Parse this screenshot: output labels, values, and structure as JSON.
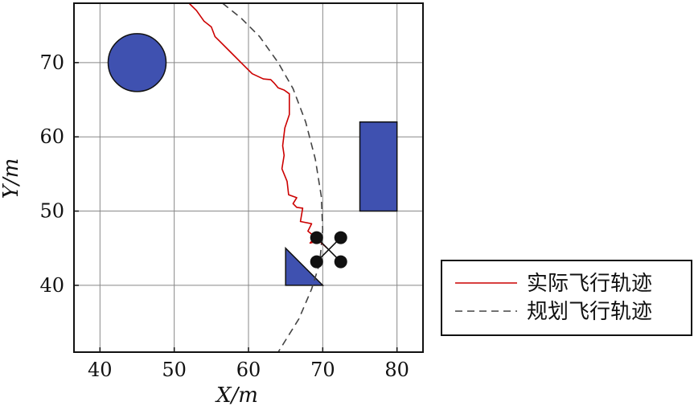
{
  "chart_data": {
    "type": "line",
    "title": "",
    "xlabel": "X/m",
    "ylabel": "Y/m",
    "xlim": [
      36.5,
      83.5
    ],
    "ylim": [
      31,
      78
    ],
    "xticks": [
      40,
      50,
      60,
      70,
      80
    ],
    "yticks": [
      40,
      50,
      60,
      70
    ],
    "xtick_labels": [
      "40",
      "50",
      "60",
      "70",
      "80"
    ],
    "ytick_labels": [
      "40",
      "50",
      "60",
      "70"
    ],
    "grid": true,
    "legend_position": "outside-right",
    "series": [
      {
        "name": "实际飞行轨迹",
        "color": "#cc0000",
        "style": "solid",
        "points": [
          [
            52.0,
            78.0
          ],
          [
            53.0,
            77.0
          ],
          [
            54.0,
            75.6
          ],
          [
            55.0,
            74.8
          ],
          [
            55.5,
            73.5
          ],
          [
            56.0,
            73.0
          ],
          [
            57.5,
            71.5
          ],
          [
            59.0,
            70.0
          ],
          [
            60.5,
            68.5
          ],
          [
            62.0,
            67.8
          ],
          [
            63.0,
            67.7
          ],
          [
            63.5,
            67.2
          ],
          [
            64.0,
            66.6
          ],
          [
            64.8,
            66.3
          ],
          [
            65.5,
            65.8
          ],
          [
            65.5,
            63.0
          ],
          [
            64.9,
            61.2
          ],
          [
            64.6,
            58.8
          ],
          [
            64.8,
            57.5
          ],
          [
            64.5,
            55.7
          ],
          [
            65.2,
            54.0
          ],
          [
            65.4,
            52.2
          ],
          [
            66.5,
            51.8
          ],
          [
            66.0,
            51.0
          ],
          [
            66.5,
            50.5
          ],
          [
            67.3,
            50.4
          ],
          [
            67.0,
            48.6
          ],
          [
            68.5,
            48.3
          ],
          [
            68.0,
            47.3
          ],
          [
            69.0,
            46.5
          ],
          [
            68.3,
            45.7
          ],
          [
            69.5,
            46.0
          ],
          [
            70.6,
            45.0
          ]
        ]
      },
      {
        "name": "规划飞行轨迹",
        "color": "#444444",
        "style": "dashed",
        "points": [
          [
            56.5,
            78.0
          ],
          [
            59.0,
            76.0
          ],
          [
            61.5,
            73.5
          ],
          [
            64.0,
            70.0
          ],
          [
            66.0,
            66.5
          ],
          [
            67.7,
            62.0
          ],
          [
            69.0,
            57.0
          ],
          [
            69.8,
            52.0
          ],
          [
            70.0,
            47.5
          ],
          [
            69.6,
            43.0
          ],
          [
            68.5,
            39.5
          ],
          [
            66.8,
            35.5
          ],
          [
            64.0,
            31.0
          ]
        ]
      }
    ],
    "obstacles": [
      {
        "shape": "circle",
        "cx": 45,
        "cy": 70,
        "r": 3.9,
        "color": "#3f51b0"
      },
      {
        "shape": "rect",
        "x0": 75,
        "x1": 80,
        "y0": 50,
        "y1": 62,
        "color": "#3f51b0"
      },
      {
        "shape": "triangle",
        "points": [
          [
            65,
            45
          ],
          [
            65,
            40
          ],
          [
            70,
            40
          ]
        ],
        "color": "#3f51b0"
      }
    ],
    "drone": {
      "x": 70.8,
      "y": 44.8
    }
  }
}
